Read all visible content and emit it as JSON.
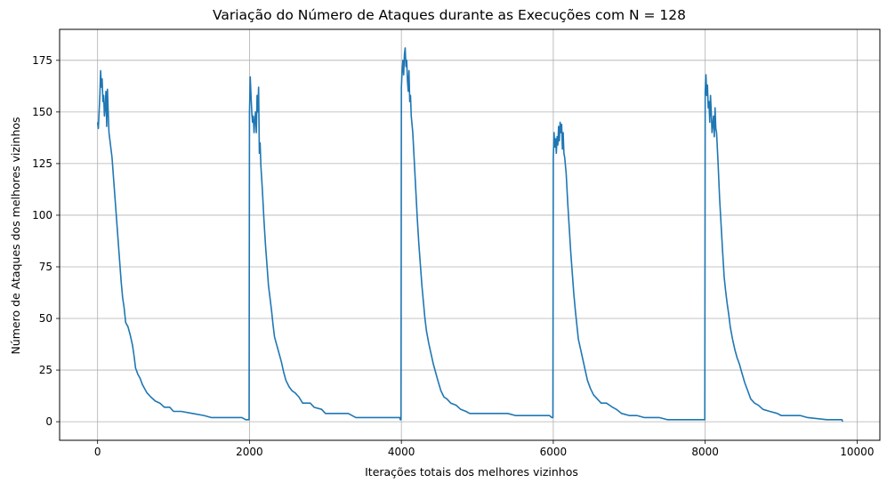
{
  "chart_data": {
    "type": "line",
    "title": "Variação do Número de Ataques durante as Execuções com N = 128",
    "xlabel": "Iterações totais dos melhores vizinhos",
    "ylabel": "Número de Ataques dos melhores vizinhos",
    "xlim": [
      -500,
      10300
    ],
    "ylim": [
      -9,
      190
    ],
    "x_ticks": [
      0,
      2000,
      4000,
      6000,
      8000,
      10000
    ],
    "y_ticks": [
      0,
      25,
      50,
      75,
      100,
      125,
      150,
      175
    ],
    "grid": true,
    "line_color": "#1f77b4",
    "series": [
      {
        "values_xy": [
          [
            0,
            145
          ],
          [
            10,
            142
          ],
          [
            20,
            150
          ],
          [
            30,
            158
          ],
          [
            40,
            170
          ],
          [
            50,
            162
          ],
          [
            60,
            166
          ],
          [
            70,
            155
          ],
          [
            80,
            158
          ],
          [
            90,
            148
          ],
          [
            100,
            152
          ],
          [
            110,
            160
          ],
          [
            120,
            143
          ],
          [
            130,
            161
          ],
          [
            140,
            150
          ],
          [
            150,
            140
          ],
          [
            170,
            134
          ],
          [
            190,
            128
          ],
          [
            210,
            118
          ],
          [
            230,
            108
          ],
          [
            250,
            98
          ],
          [
            270,
            88
          ],
          [
            290,
            78
          ],
          [
            310,
            68
          ],
          [
            330,
            60
          ],
          [
            350,
            55
          ],
          [
            370,
            48
          ],
          [
            400,
            46
          ],
          [
            430,
            42
          ],
          [
            460,
            37
          ],
          [
            480,
            32
          ],
          [
            500,
            26
          ],
          [
            530,
            23
          ],
          [
            560,
            21
          ],
          [
            590,
            18
          ],
          [
            620,
            16
          ],
          [
            650,
            14
          ],
          [
            700,
            12
          ],
          [
            760,
            10
          ],
          [
            820,
            9
          ],
          [
            880,
            7
          ],
          [
            950,
            7
          ],
          [
            1000,
            5
          ],
          [
            1100,
            5
          ],
          [
            1250,
            4
          ],
          [
            1400,
            3
          ],
          [
            1500,
            2
          ],
          [
            1900,
            2
          ],
          [
            1950,
            1
          ],
          [
            1995,
            1
          ],
          [
            2000,
            150
          ],
          [
            2010,
            167
          ],
          [
            2020,
            158
          ],
          [
            2030,
            150
          ],
          [
            2040,
            145
          ],
          [
            2050,
            148
          ],
          [
            2060,
            140
          ],
          [
            2070,
            146
          ],
          [
            2080,
            150
          ],
          [
            2090,
            140
          ],
          [
            2100,
            158
          ],
          [
            2110,
            150
          ],
          [
            2120,
            162
          ],
          [
            2130,
            130
          ],
          [
            2140,
            135
          ],
          [
            2150,
            124
          ],
          [
            2170,
            112
          ],
          [
            2190,
            98
          ],
          [
            2210,
            86
          ],
          [
            2230,
            76
          ],
          [
            2250,
            66
          ],
          [
            2270,
            60
          ],
          [
            2290,
            54
          ],
          [
            2310,
            47
          ],
          [
            2330,
            41
          ],
          [
            2360,
            37
          ],
          [
            2390,
            33
          ],
          [
            2420,
            29
          ],
          [
            2450,
            24
          ],
          [
            2480,
            20
          ],
          [
            2520,
            17
          ],
          [
            2560,
            15
          ],
          [
            2600,
            14
          ],
          [
            2650,
            12
          ],
          [
            2700,
            9
          ],
          [
            2800,
            9
          ],
          [
            2850,
            7
          ],
          [
            2950,
            6
          ],
          [
            3000,
            4
          ],
          [
            3300,
            4
          ],
          [
            3400,
            2
          ],
          [
            3980,
            2
          ],
          [
            3985,
            1
          ],
          [
            3995,
            1
          ],
          [
            4000,
            162
          ],
          [
            4010,
            170
          ],
          [
            4020,
            175
          ],
          [
            4030,
            168
          ],
          [
            4040,
            178
          ],
          [
            4050,
            181
          ],
          [
            4060,
            172
          ],
          [
            4070,
            175
          ],
          [
            4080,
            165
          ],
          [
            4090,
            160
          ],
          [
            4100,
            170
          ],
          [
            4110,
            155
          ],
          [
            4120,
            158
          ],
          [
            4130,
            148
          ],
          [
            4150,
            140
          ],
          [
            4170,
            126
          ],
          [
            4190,
            112
          ],
          [
            4210,
            98
          ],
          [
            4230,
            86
          ],
          [
            4250,
            76
          ],
          [
            4270,
            66
          ],
          [
            4290,
            58
          ],
          [
            4310,
            50
          ],
          [
            4330,
            44
          ],
          [
            4360,
            38
          ],
          [
            4390,
            33
          ],
          [
            4420,
            28
          ],
          [
            4450,
            24
          ],
          [
            4480,
            20
          ],
          [
            4520,
            15
          ],
          [
            4560,
            12
          ],
          [
            4600,
            11
          ],
          [
            4650,
            9
          ],
          [
            4720,
            8
          ],
          [
            4780,
            6
          ],
          [
            4850,
            5
          ],
          [
            4900,
            4
          ],
          [
            5200,
            4
          ],
          [
            5400,
            4
          ],
          [
            5500,
            3
          ],
          [
            5950,
            3
          ],
          [
            5980,
            2
          ],
          [
            5995,
            2
          ],
          [
            6000,
            128
          ],
          [
            6010,
            140
          ],
          [
            6020,
            133
          ],
          [
            6030,
            137
          ],
          [
            6040,
            130
          ],
          [
            6050,
            138
          ],
          [
            6060,
            134
          ],
          [
            6070,
            143
          ],
          [
            6080,
            136
          ],
          [
            6090,
            145
          ],
          [
            6100,
            140
          ],
          [
            6110,
            144
          ],
          [
            6120,
            132
          ],
          [
            6130,
            140
          ],
          [
            6140,
            130
          ],
          [
            6150,
            128
          ],
          [
            6170,
            120
          ],
          [
            6190,
            106
          ],
          [
            6210,
            94
          ],
          [
            6230,
            82
          ],
          [
            6250,
            72
          ],
          [
            6270,
            62
          ],
          [
            6290,
            54
          ],
          [
            6310,
            47
          ],
          [
            6330,
            40
          ],
          [
            6360,
            35
          ],
          [
            6390,
            30
          ],
          [
            6420,
            25
          ],
          [
            6450,
            20
          ],
          [
            6490,
            16
          ],
          [
            6530,
            13
          ],
          [
            6580,
            11
          ],
          [
            6630,
            9
          ],
          [
            6700,
            9
          ],
          [
            6780,
            7
          ],
          [
            6830,
            6
          ],
          [
            6900,
            4
          ],
          [
            7000,
            3
          ],
          [
            7100,
            3
          ],
          [
            7200,
            2
          ],
          [
            7400,
            2
          ],
          [
            7500,
            1
          ],
          [
            7950,
            1
          ],
          [
            7995,
            1
          ],
          [
            8000,
            160
          ],
          [
            8010,
            168
          ],
          [
            8020,
            158
          ],
          [
            8030,
            163
          ],
          [
            8040,
            152
          ],
          [
            8050,
            155
          ],
          [
            8060,
            145
          ],
          [
            8070,
            158
          ],
          [
            8080,
            150
          ],
          [
            8090,
            140
          ],
          [
            8100,
            144
          ],
          [
            8110,
            148
          ],
          [
            8120,
            138
          ],
          [
            8130,
            152
          ],
          [
            8140,
            142
          ],
          [
            8150,
            140
          ],
          [
            8170,
            125
          ],
          [
            8190,
            108
          ],
          [
            8210,
            95
          ],
          [
            8230,
            82
          ],
          [
            8250,
            70
          ],
          [
            8270,
            63
          ],
          [
            8290,
            57
          ],
          [
            8310,
            52
          ],
          [
            8330,
            46
          ],
          [
            8360,
            40
          ],
          [
            8390,
            35
          ],
          [
            8420,
            31
          ],
          [
            8450,
            28
          ],
          [
            8480,
            24
          ],
          [
            8520,
            19
          ],
          [
            8560,
            15
          ],
          [
            8600,
            11
          ],
          [
            8650,
            9
          ],
          [
            8700,
            8
          ],
          [
            8760,
            6
          ],
          [
            8850,
            5
          ],
          [
            8950,
            4
          ],
          [
            9000,
            3
          ],
          [
            9250,
            3
          ],
          [
            9350,
            2
          ],
          [
            9600,
            1
          ],
          [
            9800,
            1
          ],
          [
            9810,
            0
          ]
        ]
      }
    ]
  }
}
